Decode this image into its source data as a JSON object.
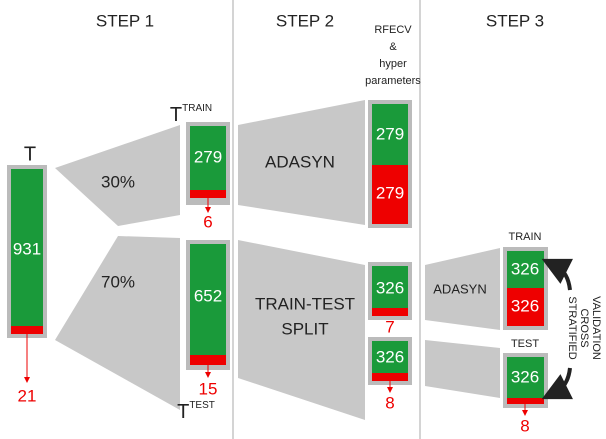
{
  "steps": [
    "STEP 1",
    "STEP 2",
    "STEP 3"
  ],
  "rfecv": {
    "lines": [
      "RFECV",
      "&",
      "hyper",
      "parameters"
    ]
  },
  "step1": {
    "total": {
      "label": "T",
      "value": "931",
      "minority": "21"
    },
    "split": {
      "train_pct": "30%",
      "test_pct": "70%"
    },
    "train": {
      "label": "T",
      "sup": "TRAIN",
      "value": "279",
      "minority": "6"
    },
    "test": {
      "label": "T",
      "sup": "TEST",
      "value": "652",
      "minority": "15"
    }
  },
  "step2": {
    "method_top": "ADASYN",
    "method_bottom": [
      "TRAIN-TEST",
      "SPLIT"
    ],
    "balanced": {
      "majority": "279",
      "minority": "279"
    },
    "train": {
      "value": "326",
      "minority": "7"
    },
    "test": {
      "value": "326",
      "minority": "8"
    }
  },
  "step3": {
    "method": "ADASYN",
    "train": {
      "label": "TRAIN",
      "majority": "326",
      "minority": "326"
    },
    "test": {
      "label": "TEST",
      "value": "326",
      "minority": "8"
    },
    "cv": [
      "STRATIFIED",
      "CROSS",
      "VALIDATION"
    ]
  }
}
